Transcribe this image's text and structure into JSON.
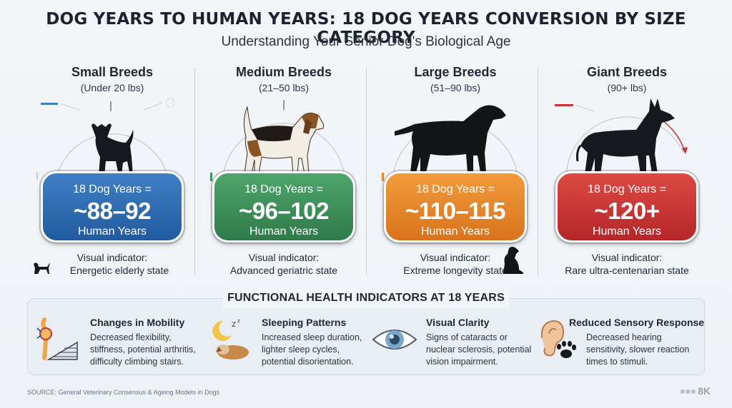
{
  "title": "DOG YEARS TO HUMAN YEARS: 18 DOG YEARS CONVERSION BY SIZE CATEGORY",
  "subtitle": "Understanding Your Senior Dog's Biological Age",
  "breeds": [
    {
      "name": "Small Breeds",
      "range": "(Under 20 lbs)",
      "dog_years": "18 Dog Years =",
      "human_value": "~88–92",
      "human_label": "Human Years",
      "indicator_label": "Visual indicator:",
      "indicator": "Energetic elderly state",
      "color": "#2d6bb3",
      "icon": "chihuahua-icon"
    },
    {
      "name": "Medium Breeds",
      "range": "(21–50 lbs)",
      "dog_years": "18 Dog Years =",
      "human_value": "~96–102",
      "human_label": "Human Years",
      "indicator_label": "Visual indicator:",
      "indicator": "Advanced geriatric state",
      "color": "#3b8f58",
      "icon": "beagle-icon"
    },
    {
      "name": "Large Breeds",
      "range": "(51–90 lbs)",
      "dog_years": "18 Dog Years =",
      "human_value": "~110–115",
      "human_label": "Human Years",
      "indicator_label": "Visual indicator:",
      "indicator": "Extreme longevity state",
      "color": "#e5842a",
      "icon": "labrador-icon"
    },
    {
      "name": "Giant Breeds",
      "range": "(90+ lbs)",
      "dog_years": "18 Dog Years =",
      "human_value": "~120+",
      "human_label": "Human Years",
      "indicator_label": "Visual indicator:",
      "indicator": "Rare ultra-centenarian state",
      "color": "#c9332f",
      "icon": "great-dane-icon"
    }
  ],
  "functional": {
    "title": "FUNCTIONAL HEALTH INDICATORS AT 18 YEARS",
    "items": [
      {
        "title": "Changes in Mobility",
        "lines": [
          "Decreased flexibility,",
          "stiffness, potential arthritis,",
          "difficulty climbing stairs."
        ],
        "icon": "joint-stairs-icon"
      },
      {
        "title": "Sleeping Patterns",
        "lines": [
          "Increased sleep duration,",
          "lighter sleep cycles,",
          "potential disorientation."
        ],
        "icon": "sleeping-dog-icon"
      },
      {
        "title": "Visual Clarity",
        "lines": [
          "Signs of cataracts or",
          "nuclear sclerosis, potential",
          "vision impairment."
        ],
        "icon": "eye-icon"
      },
      {
        "title": "Reduced Sensory Response",
        "lines": [
          "Decreased hearing",
          "sensitivity, slower reaction",
          "times to stimuli."
        ],
        "icon": "ear-paw-icon"
      }
    ]
  },
  "source": "SOURCE: General Veterinary Consensus & Ageing Models in Dogs",
  "logo": "8K"
}
